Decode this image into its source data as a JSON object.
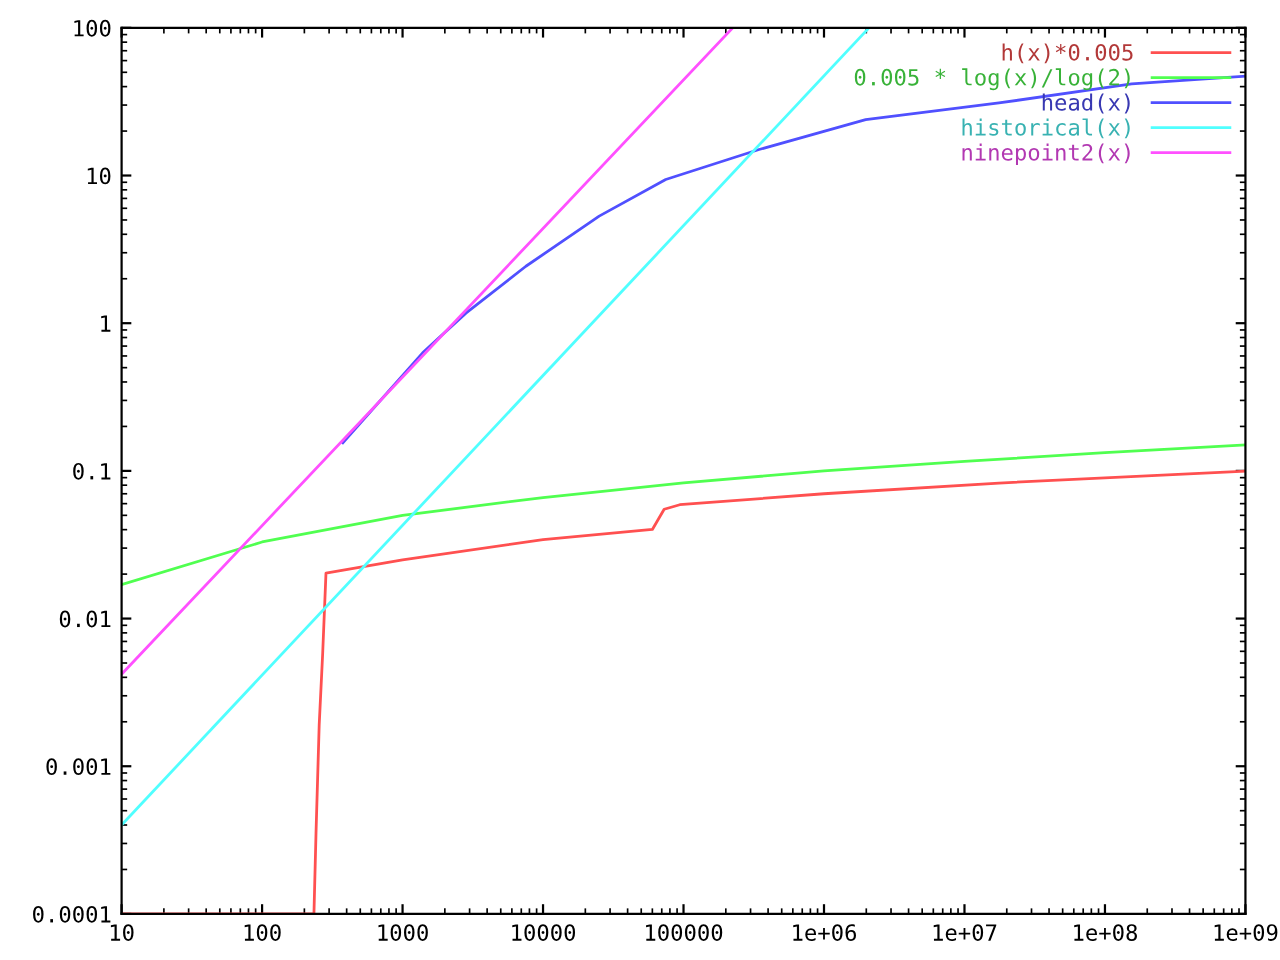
{
  "chart_data": {
    "type": "line",
    "log": "xy",
    "legend": "top right",
    "grid": false,
    "marker": "none",
    "line_style": "solid",
    "xlim": [
      10,
      1000000000
    ],
    "ylim": [
      0.0001,
      100
    ],
    "xticks": [
      10,
      100,
      1000,
      10000,
      100000,
      {
        "value": 1000000,
        "label": "1e+06"
      },
      {
        "value": 10000000,
        "label": "1e+07"
      },
      {
        "value": 100000000,
        "label": "1e+08"
      },
      {
        "value": 1000000000,
        "label": "1e+09"
      }
    ],
    "yticks": [
      0.0001,
      0.001,
      0.01,
      0.1,
      1,
      10,
      100
    ],
    "series": [
      {
        "name": "h(x)*0.005",
        "color": "#ff5050",
        "x": [
          10,
          234,
          242,
          255,
          270,
          285,
          1000,
          10000,
          60000,
          72800,
          94000,
          1000000,
          17600000,
          1000000000
        ],
        "values": [
          0.0001,
          0.0001,
          0.00035,
          0.0019,
          0.0058,
          0.0203,
          0.025,
          0.0342,
          0.0401,
          0.055,
          0.059,
          0.07,
          0.0827,
          0.0997
        ]
      },
      {
        "name": "0.005 * log(x)/log(2)",
        "color": "#50ff50",
        "x": [
          10,
          100,
          1000,
          10000,
          100000,
          1000000,
          10000000,
          100000000,
          1000000000
        ],
        "values": [
          0.017,
          0.033,
          0.05,
          0.066,
          0.083,
          0.1,
          0.116,
          0.133,
          0.15
        ]
      },
      {
        "name": "head(x)",
        "color": "#5050ff",
        "x": [
          376,
          1390,
          2825,
          7550,
          25100,
          74700,
          345000,
          1980000,
          17600000,
          155000000,
          1000000000
        ],
        "values": [
          0.155,
          0.63,
          1.17,
          2.43,
          5.31,
          9.4,
          15.0,
          23.9,
          31.0,
          41.7,
          47
        ]
      },
      {
        "name": "historical(x)",
        "color": "#50ffff",
        "x": [
          10,
          2090000
        ],
        "values": [
          0.0004,
          100
        ]
      },
      {
        "name": "ninepoint2(x)",
        "color": "#ff50ff",
        "x": [
          10,
          224000
        ],
        "values": [
          0.0042,
          100
        ]
      }
    ]
  }
}
